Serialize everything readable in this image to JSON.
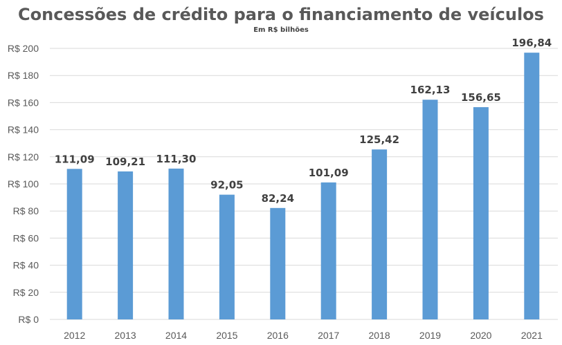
{
  "chart_data": {
    "type": "bar",
    "title": "Concessões de crédito para o financiamento de veículos",
    "subtitle": "Em R$ bilhões",
    "xlabel": "",
    "ylabel": "",
    "categories": [
      "2012",
      "2013",
      "2014",
      "2015",
      "2016",
      "2017",
      "2018",
      "2019",
      "2020",
      "2021"
    ],
    "values": [
      111.09,
      109.21,
      111.3,
      92.05,
      82.24,
      101.09,
      125.42,
      162.13,
      156.65,
      196.84
    ],
    "data_labels": [
      "111,09",
      "109,21",
      "111,30",
      "92,05",
      "82,24",
      "101,09",
      "125,42",
      "162,13",
      "156,65",
      "196,84"
    ],
    "ylim": [
      0,
      200
    ],
    "yticks": [
      0,
      20,
      40,
      60,
      80,
      100,
      120,
      140,
      160,
      180,
      200
    ],
    "ytick_labels": [
      "R$ 0",
      "R$ 20",
      "R$ 40",
      "R$ 60",
      "R$ 80",
      "R$ 100",
      "R$ 120",
      "R$ 140",
      "R$ 160",
      "R$ 180",
      "R$ 200"
    ],
    "grid": true,
    "legend": "none",
    "bar_color": "#5b9bd5"
  }
}
